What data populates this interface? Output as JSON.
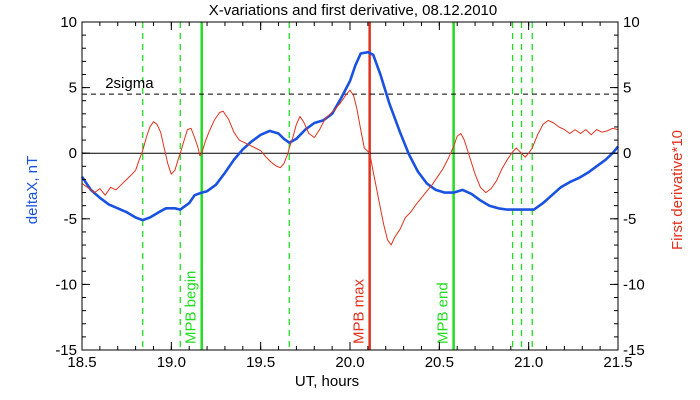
{
  "chart_data": {
    "type": "line",
    "title": "X-variations and first derivative, 08.12.2010",
    "xlabel": "UT, hours",
    "ylabel_left": "deltaX, nT",
    "ylabel_right": "First derivative*10",
    "xlim": [
      18.5,
      21.5
    ],
    "ylim": [
      -15,
      10
    ],
    "x_ticks": [
      18.5,
      19.0,
      19.5,
      20.0,
      20.5,
      21.0,
      21.5
    ],
    "x_tick_labels": [
      "18.5",
      "19.0",
      "19.5",
      "20.0",
      "20.5",
      "21.0",
      "21.5"
    ],
    "y_ticks": [
      -15,
      -10,
      -5,
      0,
      5,
      10
    ],
    "y_tick_labels": [
      "-15",
      "-10",
      "-5",
      "0",
      "5",
      "10"
    ],
    "colors": {
      "deltaX": "#1a52e0",
      "derivative": "#e0321e",
      "marker_green": "#22dd22",
      "marker_red": "#e0321e",
      "reference": "#000000"
    },
    "threshold": {
      "label": "2sigma",
      "value": 4.5
    },
    "zero_line": 0,
    "markers": [
      {
        "x": 19.17,
        "color": "green",
        "label": "MPB begin"
      },
      {
        "x": 20.11,
        "color": "red",
        "label": "MPB max"
      },
      {
        "x": 20.58,
        "color": "green",
        "label": "MPB end"
      }
    ],
    "dashed_markers": [
      18.84,
      19.05,
      19.66,
      20.91,
      20.96,
      21.02
    ],
    "series": [
      {
        "key": "deltaX",
        "axis": "left",
        "points": [
          [
            18.5,
            -1.8
          ],
          [
            18.55,
            -2.8
          ],
          [
            18.6,
            -3.4
          ],
          [
            18.65,
            -3.9
          ],
          [
            18.7,
            -4.2
          ],
          [
            18.75,
            -4.5
          ],
          [
            18.8,
            -4.9
          ],
          [
            18.84,
            -5.1
          ],
          [
            18.88,
            -4.9
          ],
          [
            18.93,
            -4.5
          ],
          [
            18.97,
            -4.2
          ],
          [
            19.02,
            -4.2
          ],
          [
            19.05,
            -4.3
          ],
          [
            19.1,
            -3.8
          ],
          [
            19.13,
            -3.2
          ],
          [
            19.17,
            -3.0
          ],
          [
            19.2,
            -2.9
          ],
          [
            19.25,
            -2.4
          ],
          [
            19.3,
            -1.5
          ],
          [
            19.35,
            -0.5
          ],
          [
            19.4,
            0.3
          ],
          [
            19.45,
            0.9
          ],
          [
            19.5,
            1.4
          ],
          [
            19.55,
            1.7
          ],
          [
            19.6,
            1.5
          ],
          [
            19.63,
            1.1
          ],
          [
            19.66,
            0.8
          ],
          [
            19.7,
            1.1
          ],
          [
            19.75,
            1.8
          ],
          [
            19.8,
            2.3
          ],
          [
            19.85,
            2.5
          ],
          [
            19.9,
            3.0
          ],
          [
            19.95,
            4.2
          ],
          [
            20.0,
            5.5
          ],
          [
            20.03,
            6.7
          ],
          [
            20.06,
            7.6
          ],
          [
            20.1,
            7.7
          ],
          [
            20.13,
            7.5
          ],
          [
            20.17,
            6.0
          ],
          [
            20.22,
            3.8
          ],
          [
            20.28,
            1.6
          ],
          [
            20.33,
            -0.1
          ],
          [
            20.38,
            -1.4
          ],
          [
            20.43,
            -2.3
          ],
          [
            20.48,
            -2.8
          ],
          [
            20.53,
            -3.0
          ],
          [
            20.58,
            -3.0
          ],
          [
            20.63,
            -2.8
          ],
          [
            20.68,
            -3.1
          ],
          [
            20.73,
            -3.6
          ],
          [
            20.78,
            -4.0
          ],
          [
            20.83,
            -4.2
          ],
          [
            20.88,
            -4.3
          ],
          [
            20.93,
            -4.3
          ],
          [
            20.98,
            -4.3
          ],
          [
            21.03,
            -4.3
          ],
          [
            21.08,
            -3.8
          ],
          [
            21.13,
            -3.2
          ],
          [
            21.18,
            -2.6
          ],
          [
            21.23,
            -2.2
          ],
          [
            21.28,
            -1.9
          ],
          [
            21.33,
            -1.5
          ],
          [
            21.38,
            -1.0
          ],
          [
            21.43,
            -0.5
          ],
          [
            21.47,
            0.0
          ],
          [
            21.5,
            0.5
          ]
        ]
      },
      {
        "key": "derivative",
        "axis": "right",
        "points": [
          [
            18.5,
            -2.3
          ],
          [
            18.53,
            -2.6
          ],
          [
            18.57,
            -3.0
          ],
          [
            18.6,
            -2.7
          ],
          [
            18.63,
            -3.2
          ],
          [
            18.66,
            -2.6
          ],
          [
            18.69,
            -2.8
          ],
          [
            18.72,
            -2.4
          ],
          [
            18.75,
            -2.0
          ],
          [
            18.78,
            -1.6
          ],
          [
            18.8,
            -1.3
          ],
          [
            18.82,
            -0.5
          ],
          [
            18.84,
            0.2
          ],
          [
            18.86,
            1.2
          ],
          [
            18.88,
            2.0
          ],
          [
            18.9,
            2.4
          ],
          [
            18.92,
            2.2
          ],
          [
            18.94,
            1.6
          ],
          [
            18.96,
            0.4
          ],
          [
            18.98,
            -0.8
          ],
          [
            19.0,
            -1.6
          ],
          [
            19.02,
            -1.3
          ],
          [
            19.04,
            -0.4
          ],
          [
            19.05,
            0.0
          ],
          [
            19.07,
            0.9
          ],
          [
            19.09,
            1.8
          ],
          [
            19.11,
            1.9
          ],
          [
            19.13,
            1.2
          ],
          [
            19.15,
            0.4
          ],
          [
            19.16,
            -0.2
          ],
          [
            19.17,
            0.0
          ],
          [
            19.19,
            0.9
          ],
          [
            19.21,
            1.6
          ],
          [
            19.24,
            2.5
          ],
          [
            19.27,
            3.1
          ],
          [
            19.29,
            3.2
          ],
          [
            19.32,
            2.6
          ],
          [
            19.35,
            1.6
          ],
          [
            19.38,
            1.0
          ],
          [
            19.41,
            0.8
          ],
          [
            19.44,
            0.6
          ],
          [
            19.47,
            0.4
          ],
          [
            19.5,
            0.2
          ],
          [
            19.53,
            -0.3
          ],
          [
            19.56,
            -0.7
          ],
          [
            19.59,
            -1.0
          ],
          [
            19.61,
            -1.1
          ],
          [
            19.63,
            -0.8
          ],
          [
            19.65,
            -0.1
          ],
          [
            19.66,
            0.4
          ],
          [
            19.68,
            1.2
          ],
          [
            19.7,
            2.2
          ],
          [
            19.72,
            2.8
          ],
          [
            19.74,
            2.4
          ],
          [
            19.77,
            1.5
          ],
          [
            19.8,
            1.2
          ],
          [
            19.83,
            1.8
          ],
          [
            19.86,
            2.6
          ],
          [
            19.89,
            3.0
          ],
          [
            19.92,
            3.4
          ],
          [
            19.95,
            3.9
          ],
          [
            19.98,
            4.5
          ],
          [
            20.0,
            4.8
          ],
          [
            20.02,
            4.4
          ],
          [
            20.04,
            3.3
          ],
          [
            20.06,
            1.8
          ],
          [
            20.08,
            0.4
          ],
          [
            20.11,
            0.0
          ],
          [
            20.13,
            -1.4
          ],
          [
            20.15,
            -2.8
          ],
          [
            20.17,
            -4.2
          ],
          [
            20.19,
            -5.5
          ],
          [
            20.21,
            -6.6
          ],
          [
            20.23,
            -7.0
          ],
          [
            20.25,
            -6.4
          ],
          [
            20.28,
            -5.8
          ],
          [
            20.31,
            -4.9
          ],
          [
            20.34,
            -4.5
          ],
          [
            20.37,
            -3.9
          ],
          [
            20.4,
            -3.4
          ],
          [
            20.43,
            -2.9
          ],
          [
            20.46,
            -2.4
          ],
          [
            20.49,
            -1.8
          ],
          [
            20.52,
            -1.2
          ],
          [
            20.55,
            -0.4
          ],
          [
            20.58,
            0.5
          ],
          [
            20.6,
            1.3
          ],
          [
            20.62,
            1.5
          ],
          [
            20.64,
            1.0
          ],
          [
            20.67,
            -0.3
          ],
          [
            20.7,
            -1.6
          ],
          [
            20.73,
            -2.6
          ],
          [
            20.76,
            -3.0
          ],
          [
            20.79,
            -2.7
          ],
          [
            20.82,
            -2.1
          ],
          [
            20.85,
            -1.2
          ],
          [
            20.88,
            -0.5
          ],
          [
            20.91,
            0.1
          ],
          [
            20.93,
            0.4
          ],
          [
            20.96,
            0.0
          ],
          [
            20.98,
            -0.3
          ],
          [
            21.0,
            0.0
          ],
          [
            21.02,
            0.4
          ],
          [
            21.05,
            1.4
          ],
          [
            21.08,
            2.2
          ],
          [
            21.11,
            2.5
          ],
          [
            21.14,
            2.3
          ],
          [
            21.17,
            2.0
          ],
          [
            21.2,
            1.8
          ],
          [
            21.23,
            1.5
          ],
          [
            21.26,
            1.8
          ],
          [
            21.29,
            1.5
          ],
          [
            21.32,
            1.8
          ],
          [
            21.35,
            1.4
          ],
          [
            21.38,
            1.8
          ],
          [
            21.41,
            1.6
          ],
          [
            21.44,
            1.7
          ],
          [
            21.47,
            1.9
          ],
          [
            21.5,
            1.8
          ]
        ]
      }
    ]
  }
}
